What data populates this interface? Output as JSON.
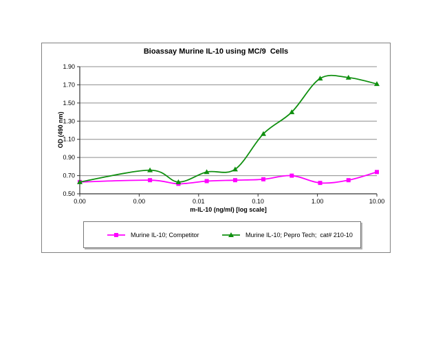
{
  "window": {
    "background": "#ffffff"
  },
  "chart_data": {
    "type": "line",
    "title": "Bioassay Murine IL-10 using MC/9  Cells",
    "xlabel": "m-IL-10 (ng/ml) [log scale]",
    "ylabel": "OD (490 nm)",
    "x_scale": "log",
    "xlim": [
      0.0001,
      10
    ],
    "ylim": [
      0.5,
      1.9
    ],
    "grid": "horizontal-only",
    "legend_position": "bottom",
    "line_style": "smoothed",
    "x": [
      0.0001,
      0.00152,
      0.00457,
      0.0137,
      0.0412,
      0.123,
      0.37,
      1.11,
      3.33,
      10
    ],
    "x_ticks": [
      {
        "value": 0.0001,
        "label": "0.00"
      },
      {
        "value": 0.001,
        "label": "0.00"
      },
      {
        "value": 0.01,
        "label": "0.01"
      },
      {
        "value": 0.1,
        "label": "0.10"
      },
      {
        "value": 1,
        "label": "1.00"
      },
      {
        "value": 10,
        "label": "10.00"
      }
    ],
    "y_ticks": [
      {
        "value": 0.5,
        "label": "0.50"
      },
      {
        "value": 0.7,
        "label": "0.70"
      },
      {
        "value": 0.9,
        "label": "0.90"
      },
      {
        "value": 1.1,
        "label": "1.10"
      },
      {
        "value": 1.3,
        "label": "1.30"
      },
      {
        "value": 1.5,
        "label": "1.50"
      },
      {
        "value": 1.7,
        "label": "1.70"
      },
      {
        "value": 1.9,
        "label": "1.90"
      }
    ],
    "series": [
      {
        "name": "Murine IL-10; Competitor",
        "color": "#ff00ff",
        "marker": "square",
        "values": [
          0.63,
          0.65,
          0.61,
          0.64,
          0.65,
          0.66,
          0.7,
          0.62,
          0.65,
          0.74
        ]
      },
      {
        "name": "Murine IL-10; Pepro Tech;  cat# 210-10",
        "color": "#0f8f0f",
        "marker": "triangle",
        "values": [
          0.63,
          0.76,
          0.63,
          0.74,
          0.77,
          1.16,
          1.4,
          1.77,
          1.78,
          1.71
        ]
      }
    ],
    "axis_color": "#333333",
    "grid_color": "#8c8c8c",
    "tick_label_color": "#000000"
  }
}
